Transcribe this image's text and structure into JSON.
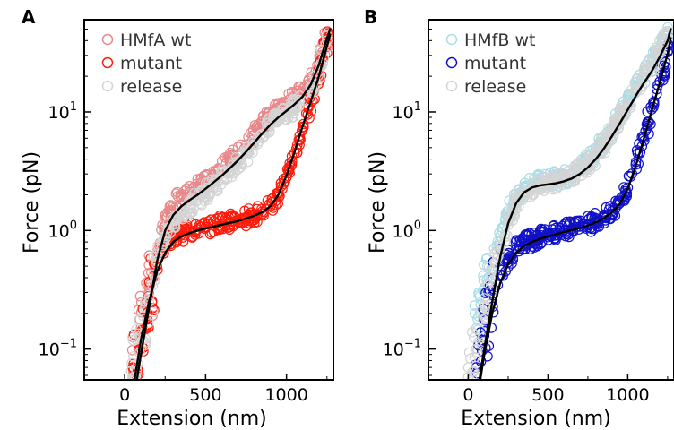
{
  "chart_data": [
    {
      "panel": "A",
      "type": "scatter",
      "xlabel": "Extension (nm)",
      "ylabel": "Force (pN)",
      "y_scale": "log",
      "xlim": [
        -250,
        1290
      ],
      "ylim": [
        0.055,
        60
      ],
      "x_ticks": [
        {
          "value": 0,
          "label": "0"
        },
        {
          "value": 500,
          "label": "500"
        },
        {
          "value": 1000,
          "label": "1000"
        }
      ],
      "y_ticks": [
        {
          "value": 0.1,
          "base": "10",
          "exp": "−1"
        },
        {
          "value": 1,
          "base": "10",
          "exp": "0"
        },
        {
          "value": 10,
          "base": "10",
          "exp": "1"
        }
      ],
      "legend_position": "top-left",
      "series": [
        {
          "name": "HMfA wt",
          "color": "#e8888a",
          "x": [
            50,
            100,
            150,
            200,
            250,
            300,
            350,
            400,
            450,
            500,
            550,
            600,
            650,
            700,
            750,
            800,
            850,
            900,
            950,
            1000,
            1050,
            1100,
            1150,
            1200,
            1250
          ],
          "y": [
            0.07,
            0.15,
            0.3,
            0.6,
            1.1,
            1.6,
            1.9,
            2.1,
            2.3,
            2.6,
            2.9,
            3.3,
            3.8,
            4.4,
            5.3,
            6.4,
            7.8,
            9.2,
            10.5,
            11.8,
            13.0,
            14.5,
            17.0,
            25.0,
            45.0
          ]
        },
        {
          "name": "mutant",
          "color": "#ff1a0a",
          "x": [
            50,
            100,
            150,
            200,
            250,
            300,
            350,
            400,
            450,
            500,
            550,
            600,
            650,
            700,
            750,
            800,
            850,
            900,
            950,
            1000,
            1050,
            1100,
            1150,
            1200,
            1250,
            1270
          ],
          "y": [
            0.07,
            0.14,
            0.28,
            0.5,
            0.72,
            0.85,
            0.92,
            0.98,
            1.02,
            1.06,
            1.1,
            1.15,
            1.18,
            1.22,
            1.28,
            1.35,
            1.45,
            1.6,
            2.0,
            2.8,
            4.5,
            7.5,
            12.0,
            20.0,
            38.0,
            45.0
          ]
        },
        {
          "name": "release",
          "color": "#d4d4d4",
          "x": [
            40,
            100,
            150,
            200,
            250,
            300,
            350,
            400,
            450,
            500,
            550,
            600,
            650,
            700,
            750,
            800,
            850,
            900,
            950,
            1000,
            1050,
            1100,
            1150,
            1200,
            1250
          ],
          "y": [
            0.065,
            0.13,
            0.25,
            0.55,
            0.9,
            1.2,
            1.4,
            1.6,
            1.8,
            2.1,
            2.4,
            2.8,
            3.2,
            3.7,
            4.4,
            5.3,
            6.5,
            7.8,
            9.0,
            10.0,
            11.0,
            12.5,
            15.0,
            22.0,
            40.0
          ]
        }
      ],
      "fit_curves": {
        "color": "#000000",
        "wt": {
          "x": [
            75,
            100,
            150,
            200,
            250,
            300,
            350,
            400,
            450,
            500,
            550,
            600,
            650,
            700,
            750,
            800,
            850,
            900,
            950,
            1000,
            1050,
            1100,
            1150,
            1200,
            1250,
            1270
          ],
          "y": [
            0.055,
            0.09,
            0.22,
            0.55,
            1.0,
            1.35,
            1.6,
            1.8,
            2.0,
            2.25,
            2.55,
            2.9,
            3.35,
            3.9,
            4.6,
            5.5,
            6.6,
            7.8,
            9.0,
            10.2,
            11.6,
            13.5,
            17.0,
            25.0,
            42.0,
            50.0
          ]
        },
        "mutant": {
          "x": [
            60,
            80,
            100,
            150,
            200,
            250,
            300,
            350,
            400,
            450,
            500,
            550,
            600,
            650,
            700,
            750,
            800,
            850,
            900,
            950,
            1000,
            1050,
            1100,
            1150,
            1200,
            1250,
            1270
          ],
          "y": [
            0.055,
            0.08,
            0.12,
            0.25,
            0.45,
            0.65,
            0.8,
            0.89,
            0.95,
            1.0,
            1.04,
            1.08,
            1.12,
            1.16,
            1.2,
            1.26,
            1.33,
            1.43,
            1.6,
            2.0,
            2.9,
            4.6,
            7.6,
            12.2,
            20.0,
            36.0,
            45.0
          ]
        }
      }
    },
    {
      "panel": "B",
      "type": "scatter",
      "xlabel": "Extension (nm)",
      "ylabel": "Force (pN)",
      "y_scale": "log",
      "xlim": [
        -250,
        1290
      ],
      "ylim": [
        0.055,
        60
      ],
      "x_ticks": [
        {
          "value": 0,
          "label": "0"
        },
        {
          "value": 500,
          "label": "500"
        },
        {
          "value": 1000,
          "label": "1000"
        }
      ],
      "y_ticks": [
        {
          "value": 0.1,
          "base": "10",
          "exp": "−1"
        },
        {
          "value": 1,
          "base": "10",
          "exp": "0"
        },
        {
          "value": 10,
          "base": "10",
          "exp": "1"
        }
      ],
      "legend_position": "top-left",
      "series": [
        {
          "name": "HMfB wt",
          "color": "#a8dde8",
          "x": [
            40,
            100,
            150,
            200,
            250,
            300,
            350,
            400,
            450,
            500,
            550,
            600,
            650,
            700,
            750,
            800,
            850,
            900,
            950,
            1000,
            1050,
            1100,
            1150,
            1200,
            1250
          ],
          "y": [
            0.2,
            0.3,
            0.5,
            0.9,
            1.4,
            1.9,
            2.3,
            2.5,
            2.6,
            2.65,
            2.7,
            2.8,
            3.0,
            3.3,
            3.8,
            4.5,
            5.6,
            7.2,
            9.5,
            12.5,
            16.0,
            20.0,
            26.0,
            35.0,
            48.0
          ]
        },
        {
          "name": "mutant",
          "color": "#1010c8",
          "x": [
            50,
            100,
            150,
            200,
            250,
            300,
            350,
            400,
            450,
            500,
            550,
            600,
            650,
            700,
            750,
            800,
            850,
            900,
            950,
            1000,
            1050,
            1100,
            1150,
            1200,
            1250,
            1270
          ],
          "y": [
            0.07,
            0.13,
            0.25,
            0.42,
            0.58,
            0.7,
            0.78,
            0.84,
            0.88,
            0.92,
            0.96,
            1.0,
            1.04,
            1.08,
            1.13,
            1.2,
            1.3,
            1.45,
            1.7,
            2.3,
            3.6,
            6.0,
            10.5,
            18.0,
            32.0,
            42.0
          ]
        },
        {
          "name": "release",
          "color": "#d4d4d4",
          "x": [
            0,
            50,
            100,
            150,
            200,
            250,
            300,
            350,
            400,
            450,
            500,
            550,
            600,
            650,
            700,
            750,
            800,
            850,
            900,
            950,
            1000,
            1050,
            1100,
            1150,
            1200,
            1250
          ],
          "y": [
            0.07,
            0.1,
            0.2,
            0.4,
            0.75,
            1.2,
            1.7,
            2.1,
            2.3,
            2.4,
            2.5,
            2.6,
            2.7,
            2.9,
            3.2,
            3.6,
            4.3,
            5.3,
            6.8,
            9.0,
            11.8,
            15.0,
            19.0,
            25.0,
            34.0,
            46.0
          ]
        }
      ],
      "fit_curves": {
        "color": "#000000",
        "wt": {
          "x": [
            70,
            100,
            150,
            200,
            250,
            300,
            350,
            400,
            450,
            500,
            550,
            600,
            650,
            700,
            750,
            800,
            850,
            900,
            950,
            1000,
            1050,
            1100,
            1150,
            1200,
            1250,
            1270
          ],
          "y": [
            0.055,
            0.1,
            0.25,
            0.6,
            1.15,
            1.7,
            2.1,
            2.3,
            2.4,
            2.45,
            2.5,
            2.6,
            2.75,
            3.0,
            3.4,
            4.0,
            4.9,
            6.2,
            8.0,
            10.4,
            13.6,
            17.5,
            22.0,
            29.0,
            40.0,
            50.0
          ]
        },
        "mutant": {
          "x": [
            75,
            100,
            150,
            200,
            250,
            300,
            350,
            400,
            450,
            500,
            550,
            600,
            650,
            700,
            750,
            800,
            850,
            900,
            950,
            1000,
            1050,
            1100,
            1150,
            1200,
            1250,
            1270
          ],
          "y": [
            0.055,
            0.09,
            0.2,
            0.36,
            0.52,
            0.65,
            0.74,
            0.8,
            0.85,
            0.89,
            0.93,
            0.97,
            1.01,
            1.05,
            1.1,
            1.17,
            1.27,
            1.42,
            1.68,
            2.25,
            3.5,
            5.9,
            10.2,
            17.5,
            31.0,
            42.0
          ]
        }
      }
    }
  ]
}
